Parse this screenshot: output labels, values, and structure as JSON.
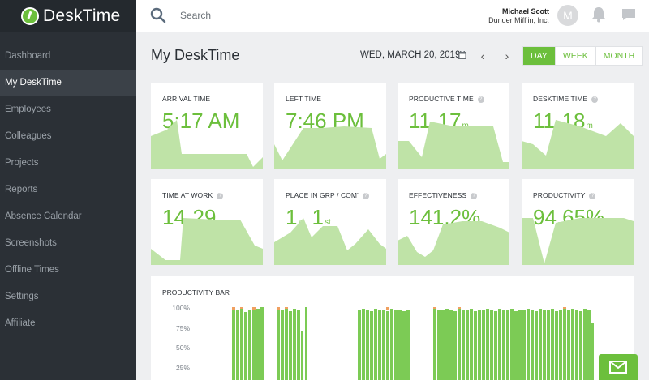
{
  "app": {
    "name": "DeskTime"
  },
  "sidebar": {
    "items": [
      {
        "label": "Dashboard",
        "active": false
      },
      {
        "label": "My DeskTime",
        "active": true
      },
      {
        "label": "Employees",
        "active": false
      },
      {
        "label": "Colleagues",
        "active": false
      },
      {
        "label": "Projects",
        "active": false
      },
      {
        "label": "Reports",
        "active": false
      },
      {
        "label": "Absence Calendar",
        "active": false
      },
      {
        "label": "Screenshots",
        "active": false
      },
      {
        "label": "Offline Times",
        "active": false
      },
      {
        "label": "Settings",
        "active": false
      },
      {
        "label": "Affiliate",
        "active": false
      }
    ]
  },
  "header": {
    "search_placeholder": "Search",
    "user_name": "Michael Scott",
    "user_company": "Dunder Mifflin, Inc.",
    "avatar_letter": "M",
    "icons": [
      "search-icon",
      "bell-icon",
      "chat-icon"
    ]
  },
  "main": {
    "title": "My DeskTime",
    "date": "WED, MARCH 20, 2019",
    "prev_arrow": "‹",
    "next_arrow": "›",
    "periods": [
      {
        "label": "DAY",
        "active": true
      },
      {
        "label": "WEEK",
        "active": false
      },
      {
        "label": "MONTH",
        "active": false
      }
    ]
  },
  "cards": [
    {
      "label": "ARRIVAL TIME",
      "value": "5:17 AM"
    },
    {
      "label": "LEFT TIME",
      "value": "7:46 PM"
    },
    {
      "label": "PRODUCTIVE TIME",
      "v1": "11",
      "u1": "h",
      "v2": "17",
      "u2": "m"
    },
    {
      "label": "DESKTIME TIME",
      "v1": "11",
      "u1": "h",
      "v2": "18",
      "u2": "m"
    },
    {
      "label": "TIME AT WORK",
      "v1": "14",
      "u1": "h",
      "v2": "29",
      "u2": "m"
    },
    {
      "label": "PLACE IN GRP / COM'",
      "v1": "1",
      "u1": "st",
      "v2": "1",
      "u2": "st"
    },
    {
      "label": "EFFECTIVENESS",
      "value": "141.2%"
    },
    {
      "label": "PRODUCTIVITY",
      "value": "94.65%"
    }
  ],
  "productivity_bar": {
    "label": "PRODUCTIVITY BAR",
    "ticks": [
      "100%",
      "75%",
      "50%",
      "25%"
    ]
  },
  "colors": {
    "accent": "#6cbf3c",
    "sparkline": "#bfe3a7",
    "sidebar": "#2b3036",
    "bar_green": "#7ccb55",
    "bar_orange": "#f0a060"
  }
}
